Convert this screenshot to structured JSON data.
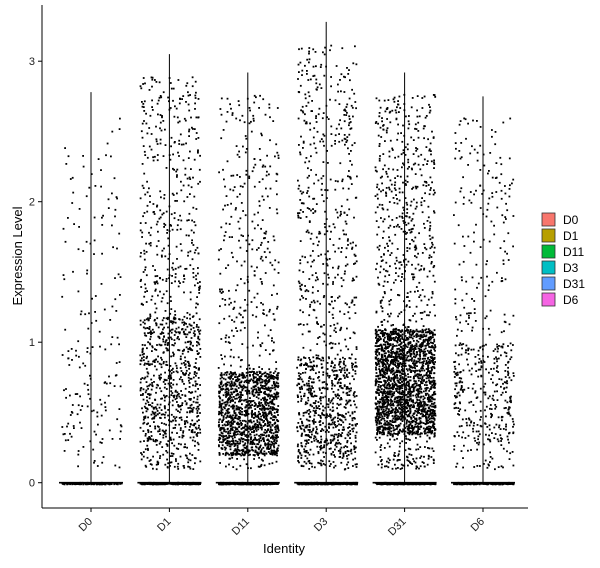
{
  "chart_data": {
    "type": "scatter",
    "subtype": "violin-jitter",
    "title": "",
    "xlabel": "Identity",
    "ylabel": "Expression Level",
    "categories": [
      "D0",
      "D1",
      "D11",
      "D3",
      "D31",
      "D6"
    ],
    "ylim": [
      -0.18,
      3.4
    ],
    "yticks": [
      0,
      1,
      2,
      3
    ],
    "grid": false,
    "legend": {
      "placement": "right",
      "entries": [
        {
          "label": "D0",
          "color": "#F8766D"
        },
        {
          "label": "D1",
          "color": "#B79F00"
        },
        {
          "label": "D11",
          "color": "#00BA38"
        },
        {
          "label": "D3",
          "color": "#00BFC4"
        },
        {
          "label": "D31",
          "color": "#619CFF"
        },
        {
          "label": "D6",
          "color": "#F564E3"
        }
      ]
    },
    "groups": [
      {
        "name": "D0",
        "max": 2.78,
        "zero_count": 150,
        "nonzero_count": 190,
        "dense_low": 0.3,
        "dense_high": 1.0,
        "dense_frac": 0.3
      },
      {
        "name": "D1",
        "max": 3.05,
        "zero_count": 300,
        "nonzero_count": 1150,
        "dense_low": 0.3,
        "dense_high": 1.2,
        "dense_frac": 0.4
      },
      {
        "name": "D11",
        "max": 2.92,
        "zero_count": 300,
        "nonzero_count": 1600,
        "dense_low": 0.2,
        "dense_high": 0.8,
        "dense_frac": 0.7
      },
      {
        "name": "D3",
        "max": 3.28,
        "zero_count": 300,
        "nonzero_count": 1150,
        "dense_low": 0.2,
        "dense_high": 0.9,
        "dense_frac": 0.4
      },
      {
        "name": "D31",
        "max": 2.92,
        "zero_count": 300,
        "nonzero_count": 2600,
        "dense_low": 0.35,
        "dense_high": 1.1,
        "dense_frac": 0.65
      },
      {
        "name": "D6",
        "max": 2.75,
        "zero_count": 200,
        "nonzero_count": 520,
        "dense_low": 0.3,
        "dense_high": 1.0,
        "dense_frac": 0.45
      }
    ]
  }
}
